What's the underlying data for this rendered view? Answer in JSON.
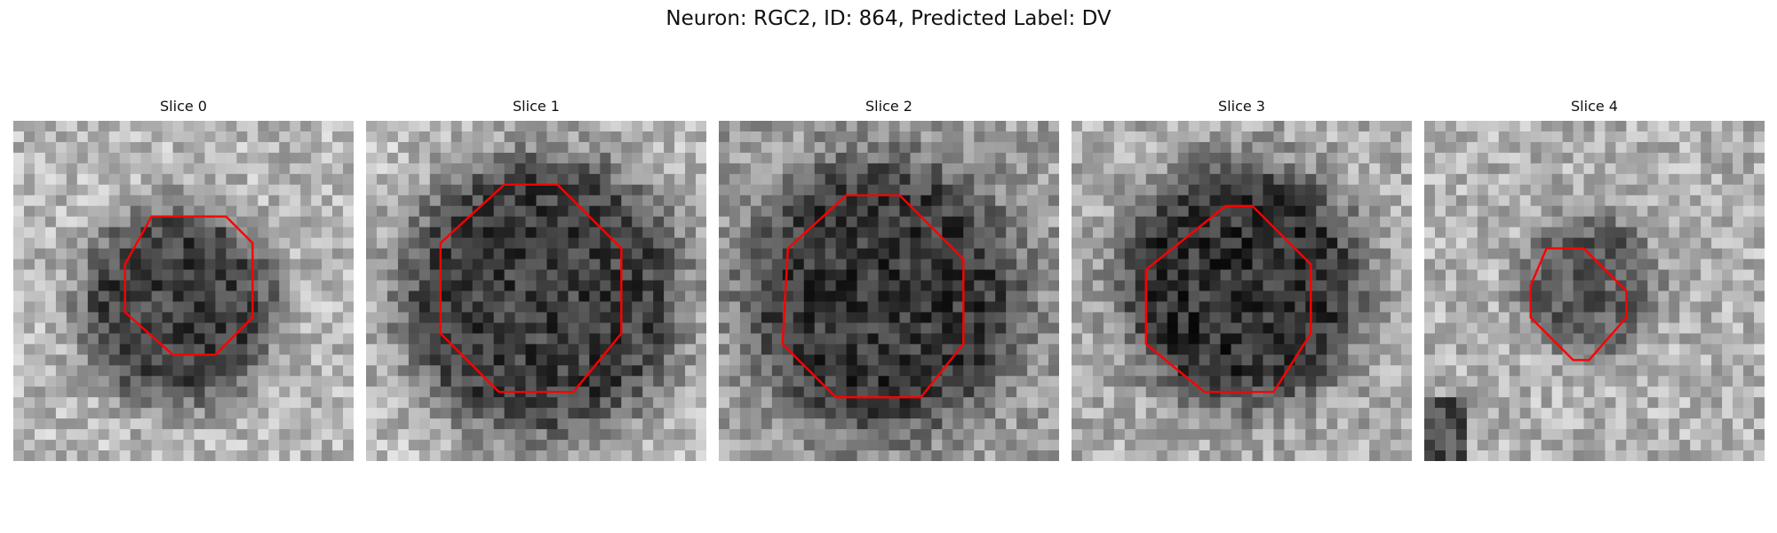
{
  "figure": {
    "title": "Neuron: RGC2, ID: 864, Predicted Label: DV"
  },
  "panels": [
    {
      "title": "Slice 0"
    },
    {
      "title": "Slice 1"
    },
    {
      "title": "Slice 2"
    },
    {
      "title": "Slice 3"
    },
    {
      "title": "Slice 4"
    }
  ],
  "colors": {
    "contour": "#ff0000"
  }
}
